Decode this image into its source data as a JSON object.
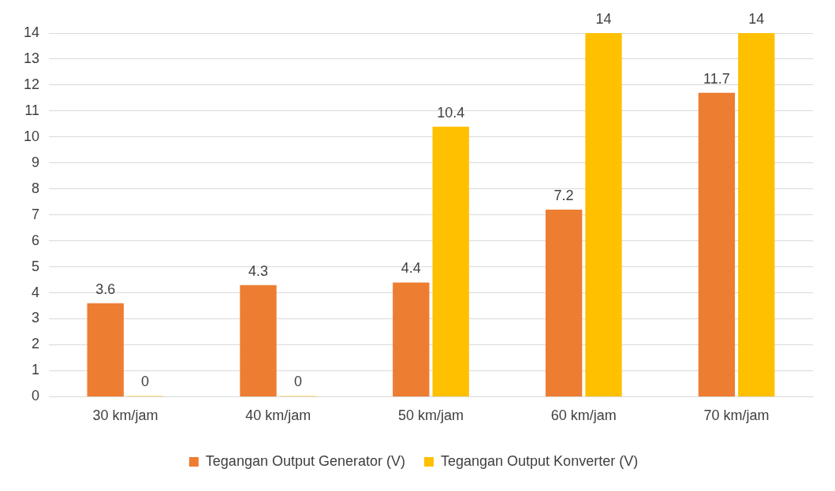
{
  "chart_data": {
    "type": "bar",
    "categories": [
      "30 km/jam",
      "40 km/jam",
      "50 km/jam",
      "60 km/jam",
      "70 km/jam"
    ],
    "series": [
      {
        "name": "Tegangan Output Generator (V)",
        "color": "#ed7d31",
        "values": [
          3.6,
          4.3,
          4.4,
          7.2,
          11.7
        ]
      },
      {
        "name": "Tegangan Output Konverter (V)",
        "color": "#ffc000",
        "values": [
          0,
          0,
          10.4,
          14,
          14
        ]
      }
    ],
    "ylim": [
      0,
      14
    ],
    "yticks": [
      0,
      1,
      2,
      3,
      4,
      5,
      6,
      7,
      8,
      9,
      10,
      11,
      12,
      13,
      14
    ],
    "grid": "y",
    "legend": "bottom",
    "data_labels": true
  }
}
